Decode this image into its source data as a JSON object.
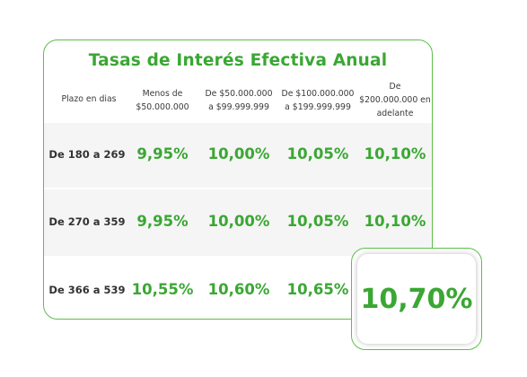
{
  "table": {
    "title": "Tasas de Interés Efectiva Anual",
    "header": {
      "term": "Plazo en dias",
      "col1": [
        "Menos de",
        "$50.000.000"
      ],
      "col2": [
        "De $50.000.000",
        "a $99.999.999"
      ],
      "col3": [
        "De $100.000.000",
        "a $199.999.999"
      ],
      "col4": [
        "De",
        "$200.000.000 en",
        "adelante"
      ]
    },
    "rows": [
      {
        "label": "De 180 a 269",
        "values": [
          "9,95%",
          "10,00%",
          "10,05%",
          "10,10%"
        ]
      },
      {
        "label": "De 270 a 359",
        "values": [
          "9,95%",
          "10,00%",
          "10,05%",
          "10,10%"
        ]
      },
      {
        "label": "De 366 a 539",
        "values": [
          "10,55%",
          "10,60%",
          "10,65%",
          "10,70%"
        ]
      }
    ]
  },
  "colors": {
    "accent": "#3aa733",
    "border": "#5cbf4a",
    "shade": "#f5f5f5"
  }
}
